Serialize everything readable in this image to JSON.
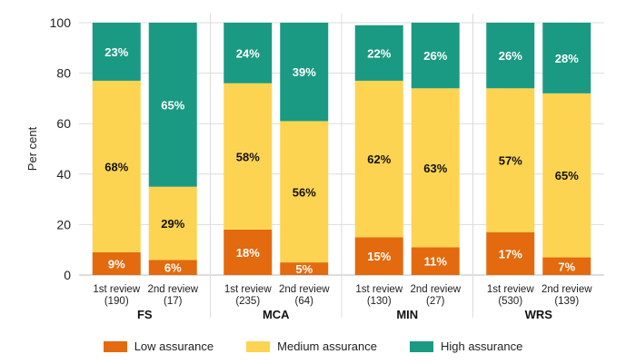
{
  "chart_data": {
    "type": "bar",
    "stacked": true,
    "title": "",
    "xlabel": "",
    "ylabel": "Per cent",
    "ylim": [
      0,
      100
    ],
    "yticks": [
      0,
      20,
      40,
      60,
      80,
      100
    ],
    "grid": true,
    "legend_position": "bottom",
    "groups": [
      {
        "name": "FS",
        "bars": [
          {
            "label": "1st review",
            "n": "(190)",
            "values": [
              9,
              68,
              23
            ],
            "labels": [
              "9%",
              "68%",
              "23%"
            ]
          },
          {
            "label": "2nd review",
            "n": "(17)",
            "values": [
              6,
              29,
              65
            ],
            "labels": [
              "6%",
              "29%",
              "65%"
            ]
          }
        ]
      },
      {
        "name": "MCA",
        "bars": [
          {
            "label": "1st review",
            "n": "(235)",
            "values": [
              18,
              58,
              24
            ],
            "labels": [
              "18%",
              "58%",
              "24%"
            ]
          },
          {
            "label": "2nd review",
            "n": "(64)",
            "values": [
              5,
              56,
              39
            ],
            "labels": [
              "5%",
              "56%",
              "39%"
            ]
          }
        ]
      },
      {
        "name": "MIN",
        "bars": [
          {
            "label": "1st review",
            "n": "(130)",
            "values": [
              15,
              62,
              22
            ],
            "labels": [
              "15%",
              "62%",
              "22%"
            ]
          },
          {
            "label": "2nd review",
            "n": "(27)",
            "values": [
              11,
              63,
              26
            ],
            "labels": [
              "11%",
              "63%",
              "26%"
            ]
          }
        ]
      },
      {
        "name": "WRS",
        "bars": [
          {
            "label": "1st review",
            "n": "(530)",
            "values": [
              17,
              57,
              26
            ],
            "labels": [
              "17%",
              "57%",
              "26%"
            ]
          },
          {
            "label": "2nd review",
            "n": "(139)",
            "values": [
              7,
              65,
              28
            ],
            "labels": [
              "7%",
              "65%",
              "28%"
            ]
          }
        ]
      }
    ],
    "series": [
      {
        "name": "Low assurance",
        "color": "#E36A0E",
        "label_color": "#ffffff"
      },
      {
        "name": "Medium assurance",
        "color": "#FDD451",
        "label_color": "#111111"
      },
      {
        "name": "High assurance",
        "color": "#1A9A82",
        "label_color": "#ffffff"
      }
    ]
  },
  "colors": {
    "grid": "#dcdcdc",
    "axis": "#bbbbbb"
  }
}
